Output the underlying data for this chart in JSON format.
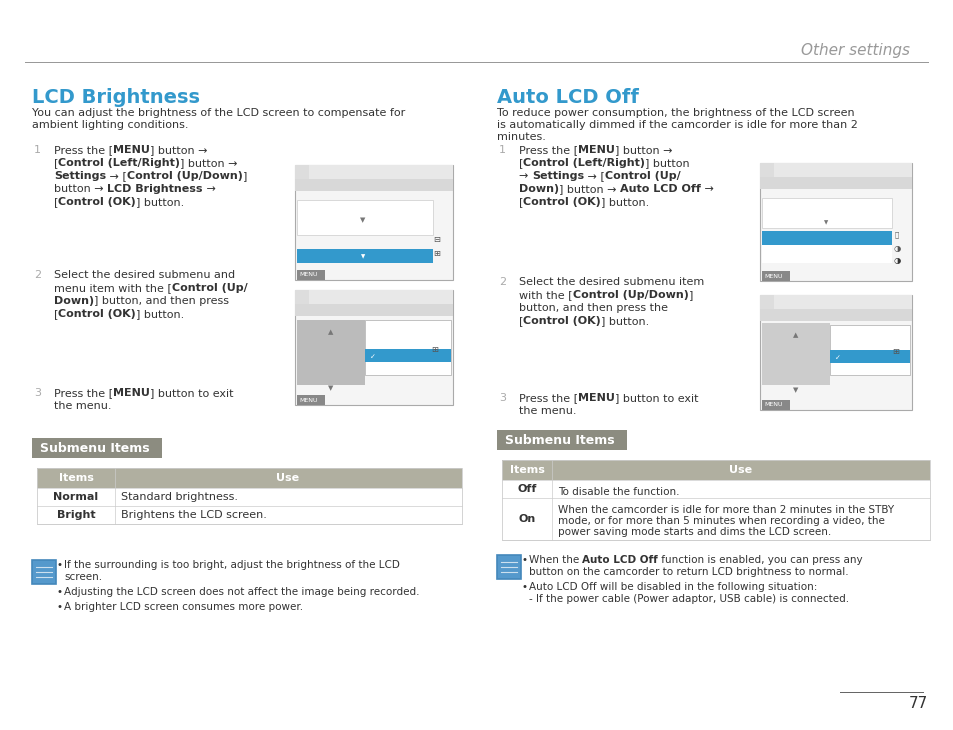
{
  "page_bg": "#ffffff",
  "header_text": "Other settings",
  "header_color": "#999999",
  "header_line_color": "#555555",
  "left_title": "LCD Brightness",
  "left_title_color": "#3399cc",
  "left_intro": "You can adjust the brightness of the LCD screen to compensate for\nambient lighting conditions.",
  "left_steps": [
    [
      "Press the [",
      "MENU",
      "] button →\n[",
      "Control (Left/Right)",
      "] button →\n",
      "Settings",
      " → [",
      "Control (Up/Down)",
      "]\nbutton → ",
      "LCD Brightness",
      " →\n[",
      "Control (OK)",
      "] button."
    ],
    [
      "Select the desired submenu and\nmenu item with the [",
      "Control (Up/\nDown)",
      "] button, and then press\n[",
      "Control (OK)",
      "] button."
    ],
    [
      "Press the [",
      "MENU",
      "] button to exit\nthe menu."
    ]
  ],
  "submenu_label": "Submenu Items",
  "submenu_bg": "#8c8c80",
  "submenu_text_color": "#ffffff",
  "left_table_header": [
    "Items",
    "Use"
  ],
  "left_table_rows": [
    [
      "Normal",
      "Standard brightness."
    ],
    [
      "Bright",
      "Brightens the LCD screen."
    ]
  ],
  "table_header_bg": "#b0afa0",
  "table_header_text": "#ffffff",
  "table_border": "#cccccc",
  "left_notes": [
    "If the surrounding is too bright, adjust the brightness of the LCD\nscreen.",
    "Adjusting the LCD screen does not affect the image being recorded.",
    "A brighter LCD screen consumes more power."
  ],
  "right_title": "Auto LCD Off",
  "right_title_color": "#3399cc",
  "right_intro": "To reduce power consumption, the brightness of the LCD screen\nis automatically dimmed if the camcorder is idle for more than 2\nminutes.",
  "right_steps": [
    [
      "Press the [",
      "MENU",
      "] button →\n[",
      "Control (Left/Right)",
      "] button\n→ ",
      "Settings",
      " → [",
      "Control (Up/\nDown)",
      "] button → ",
      "Auto LCD Off",
      " →\n[",
      "Control (OK)",
      "] button."
    ],
    [
      "Select the desired submenu item\nwith the [",
      "Control (Up/Down)",
      "]\nbutton, and then press the\n[",
      "Control (OK)",
      "] button."
    ],
    [
      "Press the [",
      "MENU",
      "] button to exit\nthe menu."
    ]
  ],
  "right_table_header": [
    "Items",
    "Use"
  ],
  "right_table_rows": [
    [
      "Off",
      "To disable the function."
    ],
    [
      "On",
      "When the camcorder is idle for more than 2 minutes in the STBY\nmode, or for more than 5 minutes when recording a video, the\npower saving mode starts and dims the LCD screen."
    ]
  ],
  "right_notes_bold": "Auto LCD Off",
  "right_notes": [
    "When the [AUTO_LCD_OFF] function is enabled, you can press any\nbutton on the camcorder to return LCD brightness to normal.",
    "Auto LCD Off will be disabled in the following situation:\n- If the power cable (Power adaptor, USB cable) is connected."
  ],
  "page_number": "77",
  "text_color": "#333333",
  "body_fontsize": 8.0,
  "small_fontsize": 7.5,
  "step_num_color": "#aaaaaa"
}
